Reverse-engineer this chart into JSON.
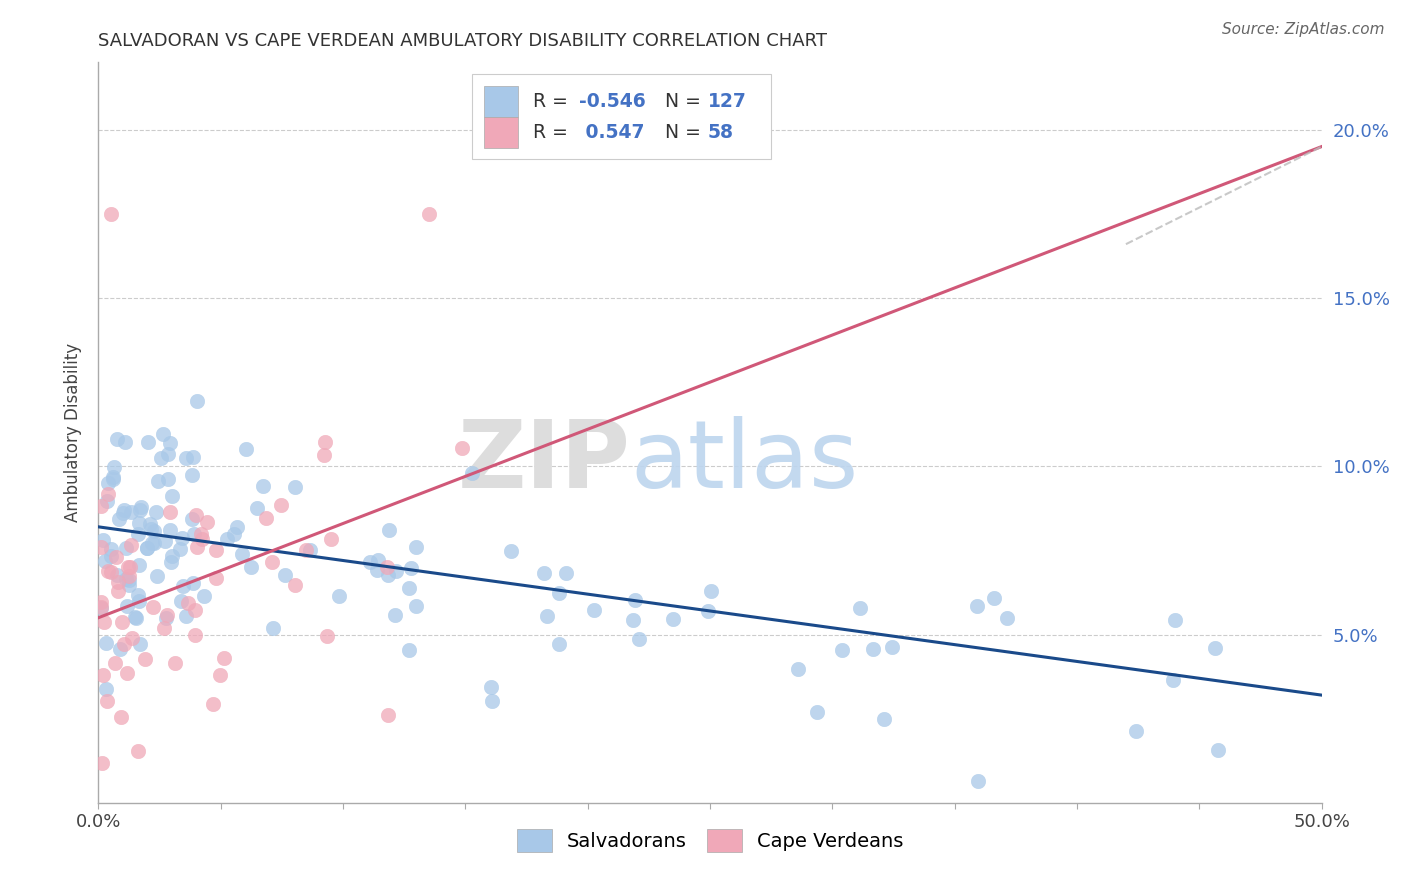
{
  "title": "SALVADORAN VS CAPE VERDEAN AMBULATORY DISABILITY CORRELATION CHART",
  "source": "Source: ZipAtlas.com",
  "ylabel": "Ambulatory Disability",
  "xlim": [
    0.0,
    0.5
  ],
  "ylim": [
    0.0,
    0.22
  ],
  "xticks": [
    0.0,
    0.05,
    0.1,
    0.15,
    0.2,
    0.25,
    0.3,
    0.35,
    0.4,
    0.45,
    0.5
  ],
  "yticks": [
    0.0,
    0.05,
    0.1,
    0.15,
    0.2
  ],
  "salvadoran_R": -0.546,
  "salvadoran_N": 127,
  "capeverdean_R": 0.547,
  "capeverdean_N": 58,
  "blue_scatter_color": "#A8C8E8",
  "pink_scatter_color": "#F0A8B8",
  "blue_line_color": "#1A4A8A",
  "pink_line_color": "#D05878",
  "grid_color": "#CCCCCC",
  "ytick_color": "#4472C4",
  "legend_R_color": "#4472C4",
  "legend_N_color": "#4472C4",
  "sal_trend_x0": 0.0,
  "sal_trend_x1": 0.5,
  "sal_trend_y0": 0.082,
  "sal_trend_y1": 0.032,
  "cv_trend_x0": 0.0,
  "cv_trend_x1": 0.5,
  "cv_trend_y0": 0.055,
  "cv_trend_y1": 0.195
}
